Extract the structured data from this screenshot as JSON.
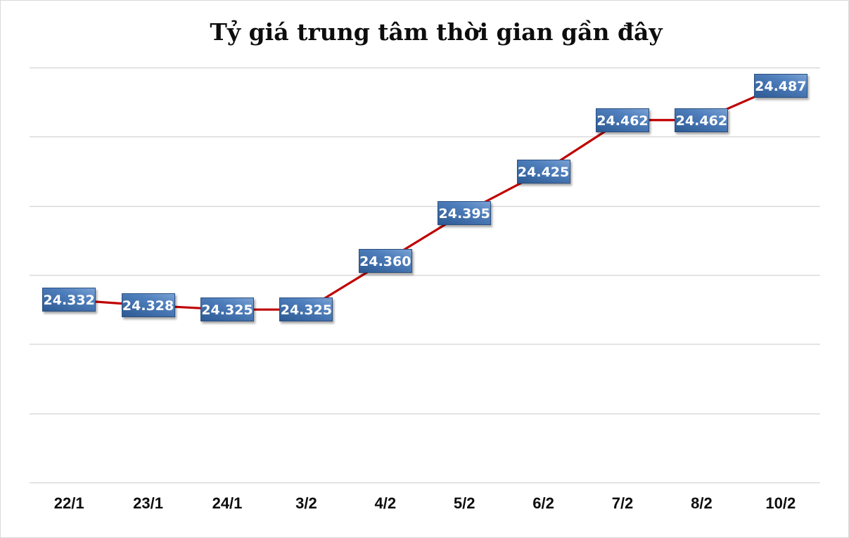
{
  "chart_data": {
    "type": "line",
    "title": "Tỷ giá trung tâm thời gian gần đây",
    "xlabel": "",
    "ylabel": "",
    "categories": [
      "22/1",
      "23/1",
      "24/1",
      "3/2",
      "4/2",
      "5/2",
      "6/2",
      "7/2",
      "8/2",
      "10/2"
    ],
    "series": [
      {
        "name": "Tỷ giá trung tâm",
        "values": [
          24.332,
          24.328,
          24.325,
          24.325,
          24.36,
          24.395,
          24.425,
          24.462,
          24.462,
          24.487
        ],
        "labels": [
          "24.332",
          "24.328",
          "24.325",
          "24.325",
          "24.360",
          "24.395",
          "24.425",
          "24.462",
          "24.462",
          "24.487"
        ],
        "color": "#c00000"
      }
    ],
    "ylim": [
      24.2,
      24.5
    ],
    "y_gridlines": [
      24.2,
      24.25,
      24.3,
      24.35,
      24.4,
      24.45,
      24.5
    ],
    "grid": true,
    "y_tick_labels_visible": false,
    "legend": "none",
    "data_label_style": {
      "background": "#3f6ea8",
      "text_color": "#ffffff"
    }
  }
}
